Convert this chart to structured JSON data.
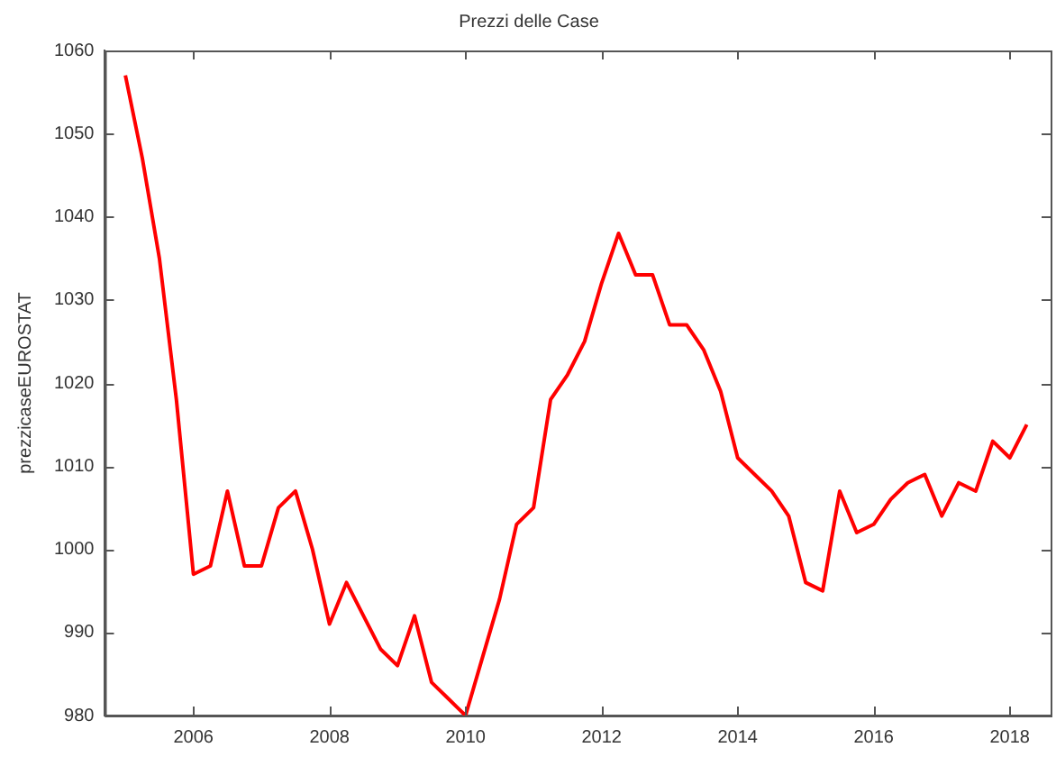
{
  "chart_data": {
    "type": "line",
    "title": "Prezzi delle Case",
    "ylabel": "prezzicaseEUROSTAT",
    "x": [
      2005,
      2005.25,
      2005.5,
      2005.75,
      2006,
      2006.25,
      2006.5,
      2006.75,
      2007,
      2007.25,
      2007.5,
      2007.75,
      2008,
      2008.25,
      2008.5,
      2008.75,
      2009,
      2009.25,
      2009.5,
      2009.75,
      2010,
      2010.25,
      2010.5,
      2010.75,
      2011,
      2011.25,
      2011.5,
      2011.75,
      2012,
      2012.25,
      2012.5,
      2012.75,
      2013,
      2013.25,
      2013.5,
      2013.75,
      2014,
      2014.25,
      2014.5,
      2014.75,
      2015,
      2015.25,
      2015.5,
      2015.75,
      2016,
      2016.25,
      2016.5,
      2016.75,
      2017,
      2017.25,
      2017.5,
      2017.75,
      2018,
      2018.25
    ],
    "series": [
      {
        "color": "#ff0000",
        "values": [
          1057,
          1047,
          1035,
          1018,
          997,
          998,
          1007,
          998,
          998,
          1005,
          1007,
          1000,
          991,
          996,
          992,
          988,
          986,
          992,
          984,
          982,
          980,
          987,
          994,
          1003,
          1005,
          1018,
          1021,
          1025,
          1032,
          1038,
          1033,
          1033,
          1027,
          1027,
          1024,
          1019,
          1011,
          1009,
          1007,
          1004,
          996,
          995,
          1007,
          1002,
          1003,
          1006,
          1008,
          1009,
          1004,
          1008,
          1007,
          1013,
          1011,
          1015
        ]
      }
    ],
    "xlim": [
      2004.7,
      2018.6
    ],
    "xticks": [
      2006,
      2008,
      2010,
      2012,
      2014,
      2016,
      2018
    ],
    "ylim": [
      980,
      1060
    ],
    "yticks": [
      980,
      990,
      1000,
      1010,
      1020,
      1030,
      1040,
      1050,
      1060
    ],
    "grid": false,
    "legend": false,
    "marker": "none",
    "line_style": "solid"
  }
}
